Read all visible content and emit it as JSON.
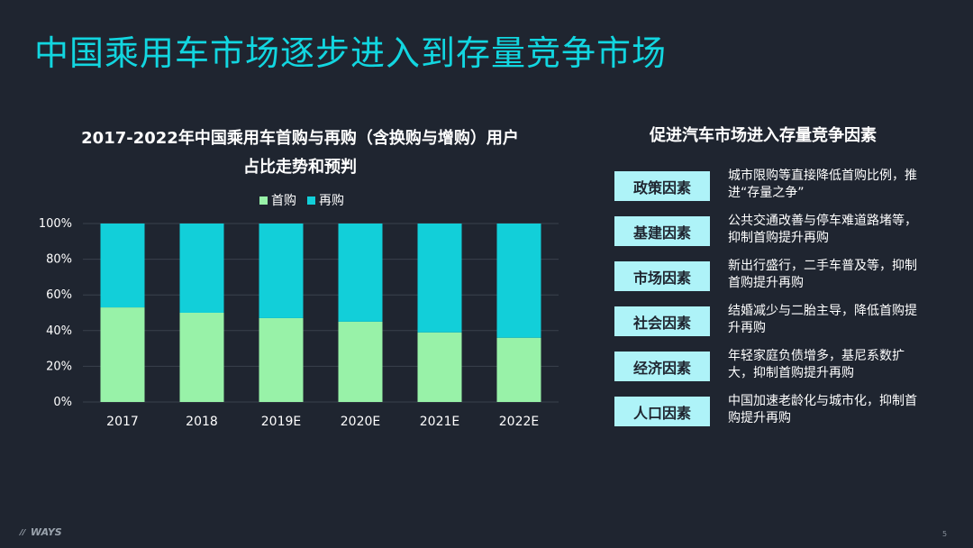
{
  "title": "中国乘用车市场逐步进入到存量竞争市场",
  "chart_data": {
    "type": "bar",
    "stacked": true,
    "title": "2017-2022年中国乘用车首购与再购（含换购与增购）用户占比走势和预判",
    "categories": [
      "2017",
      "2018",
      "2019E",
      "2020E",
      "2021E",
      "2022E"
    ],
    "series": [
      {
        "name": "首购",
        "color": "#98f2a8",
        "values": [
          53,
          50,
          47,
          45,
          39,
          36
        ]
      },
      {
        "name": "再购",
        "color": "#12cfd9",
        "values": [
          47,
          50,
          53,
          55,
          61,
          64
        ]
      }
    ],
    "y_ticks": [
      "0%",
      "20%",
      "40%",
      "60%",
      "80%",
      "100%"
    ],
    "ylim": [
      0,
      100
    ],
    "grid": true,
    "legend": "top"
  },
  "factors": {
    "title": "促进汽车市场进入存量竞争因素",
    "items": [
      {
        "label": "政策因素",
        "desc": "城市限购等直接降低首购比例，推进“存量之争”"
      },
      {
        "label": "基建因素",
        "desc": "公共交通改善与停车难道路堵等，抑制首购提升再购"
      },
      {
        "label": "市场因素",
        "desc": "新出行盛行，二手车普及等，抑制首购提升再购"
      },
      {
        "label": "社会因素",
        "desc": "结婚减少与二胎主导，降低首购提升再购"
      },
      {
        "label": "经济因素",
        "desc": "年轻家庭负债增多，基尼系数扩大，抑制首购提升再购"
      },
      {
        "label": "人口因素",
        "desc": "中国加速老龄化与城市化，抑制首购提升再购"
      }
    ]
  },
  "footer": {
    "logo": "WAYS",
    "page": "5"
  }
}
